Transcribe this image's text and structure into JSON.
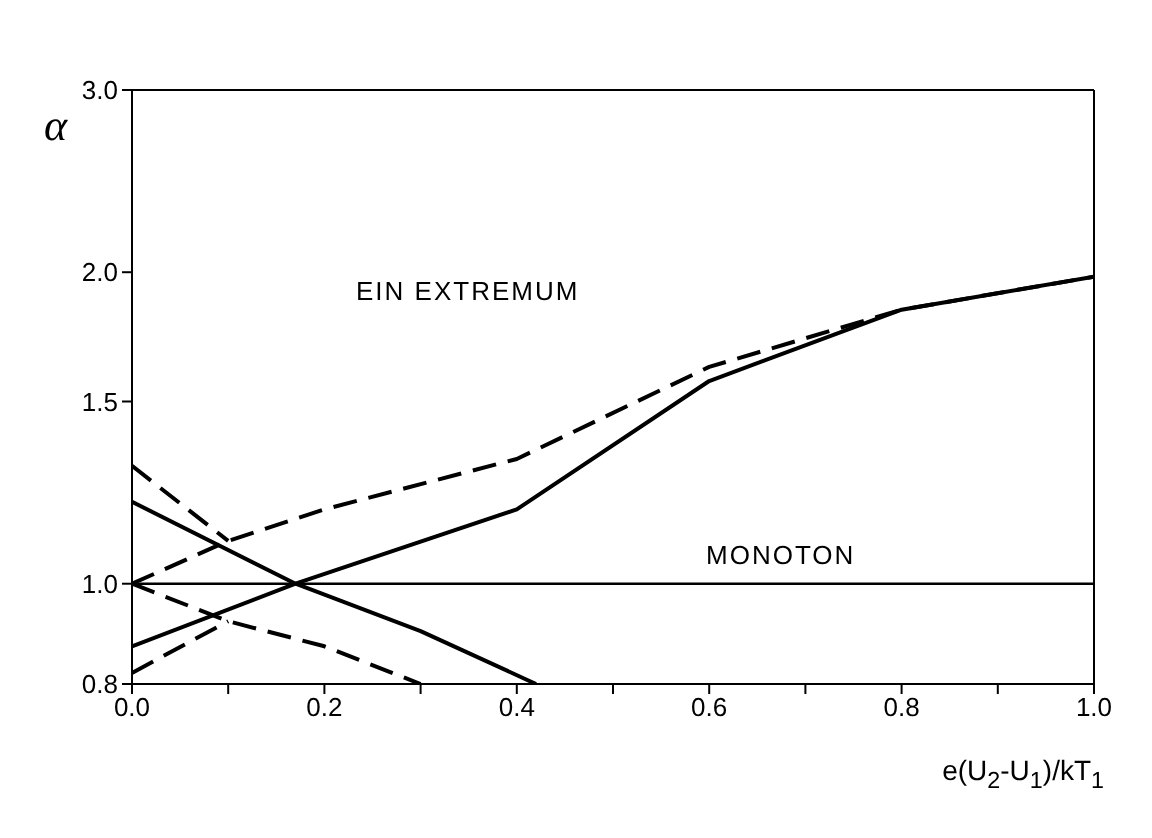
{
  "chart_data": {
    "type": "line",
    "xlabel": "e(U$_{2}$-U$_{1}$)/kT$_{1}$",
    "ylabel": "α",
    "log": "y",
    "xlim": [
      0,
      1
    ],
    "ylim": [
      0.8,
      3
    ],
    "xticks": [
      {
        "value": 0,
        "label": "0.0"
      },
      {
        "value": 0.1,
        "label": null
      },
      {
        "value": 0.2,
        "label": "0.2"
      },
      {
        "value": 0.3,
        "label": null
      },
      {
        "value": 0.4,
        "label": "0.4"
      },
      {
        "value": 0.5,
        "label": null
      },
      {
        "value": 0.6,
        "label": "0.6"
      },
      {
        "value": 0.7,
        "label": null
      },
      {
        "value": 0.8,
        "label": "0.8"
      },
      {
        "value": 0.9,
        "label": null
      },
      {
        "value": 1,
        "label": "1.0"
      }
    ],
    "yticks": [
      0.8,
      {
        "value": 1,
        "label": "1.0"
      },
      1.5,
      {
        "value": 2,
        "label": "2.0"
      },
      {
        "value": 3,
        "label": "3.0"
      }
    ],
    "grid": false,
    "marker": "none",
    "annotations": [
      "EIN EXTREMUM",
      "MONOTON"
    ],
    "series": [
      {
        "color": "#000000",
        "line_style": "solid",
        "x": [
          0,
          1
        ],
        "values": [
          1,
          1
        ]
      },
      {
        "color": "#000000",
        "line_style": "solid",
        "x": [
          0,
          0.17,
          0.4,
          0.6,
          0.8,
          1
        ],
        "values": [
          0.87,
          1,
          1.18,
          1.57,
          1.84,
          1.98
        ]
      },
      {
        "color": "#000000",
        "line_style": "solid",
        "x": [
          0,
          0.17,
          0.3,
          0.42
        ],
        "values": [
          1.2,
          1,
          0.9,
          0.8
        ]
      },
      {
        "color": "#000000",
        "line_style": "dashed",
        "x": [
          0,
          0.1,
          0.2,
          0.4,
          0.6,
          0.8,
          1
        ],
        "values": [
          1,
          1.1,
          1.18,
          1.32,
          1.62,
          1.84,
          1.98
        ]
      },
      {
        "color": "#000000",
        "line_style": "dashed",
        "x": [
          0,
          0.1
        ],
        "values": [
          1.3,
          1.1
        ]
      },
      {
        "color": "#000000",
        "line_style": "dashed",
        "x": [
          0,
          0.1,
          0.2,
          0.3
        ],
        "values": [
          1,
          0.92,
          0.87,
          0.8
        ]
      },
      {
        "color": "#000000",
        "line_style": "dashed",
        "x": [
          0,
          0.1
        ],
        "values": [
          0.82,
          0.92
        ]
      }
    ]
  }
}
